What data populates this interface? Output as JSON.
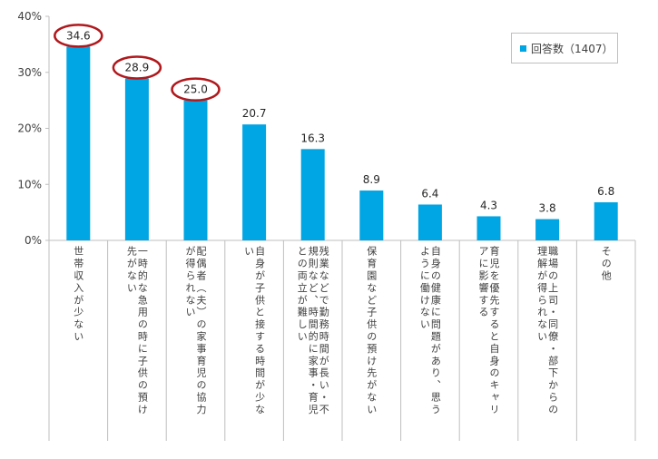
{
  "chart_data": {
    "type": "bar",
    "categories": [
      "世帯収入が少ない",
      "一時的な急用の時に子供の預け先がない",
      "配偶者（夫）の家事育児の協力が得られない",
      "自身が子供と接する時間が少ない",
      "残業などで勤務時間が長い・不規則など、時間的に家事・育児との両立が難しい",
      "保育園など子供の預け先がない",
      "自身の健康に問題があり、思うように働けない",
      "育児を優先すると自身のキャリアに影響する",
      "職場の上司・同僚・部下からの理解が得られない",
      "その他"
    ],
    "category_lines": [
      [
        "世帯収入が少ない"
      ],
      [
        "一時的な急用の時に子供の預け",
        "先がない"
      ],
      [
        "配偶者（夫）の家事育児の協力",
        "が得られない"
      ],
      [
        "自身が子供と接する時間が少な",
        "い"
      ],
      [
        "残業などで勤務時間が長い・不",
        "規則など、時間的に家事・育児",
        "との両立が難しい"
      ],
      [
        "保育園など子供の預け先がない"
      ],
      [
        "自身の健康に問題があり、思う",
        "ように働けない"
      ],
      [
        "育児を優先すると自身のキャリ",
        "アに影響する"
      ],
      [
        "職場の上司・同僚・部下からの",
        "理解が得られない"
      ],
      [
        "その他"
      ]
    ],
    "series": [
      {
        "name": "回答数（1407）",
        "values": [
          34.6,
          28.9,
          25.0,
          20.7,
          16.3,
          8.9,
          6.4,
          4.3,
          3.8,
          6.8
        ]
      }
    ],
    "value_labels": [
      "34.6",
      "28.9",
      "25.0",
      "20.7",
      "16.3",
      "8.9",
      "6.4",
      "4.3",
      "3.8",
      "6.8"
    ],
    "highlighted_indices": [
      0,
      1,
      2
    ],
    "yticks": [
      "0%",
      "10%",
      "20%",
      "30%",
      "40%"
    ],
    "ylim": [
      0,
      40
    ],
    "title": "",
    "xlabel": "",
    "ylabel": "",
    "legend_position": "top-right",
    "colors": {
      "bar": "#00a5e3",
      "highlight": "#b0181c",
      "axis": "#bfbfbf",
      "text": "#404040"
    }
  }
}
